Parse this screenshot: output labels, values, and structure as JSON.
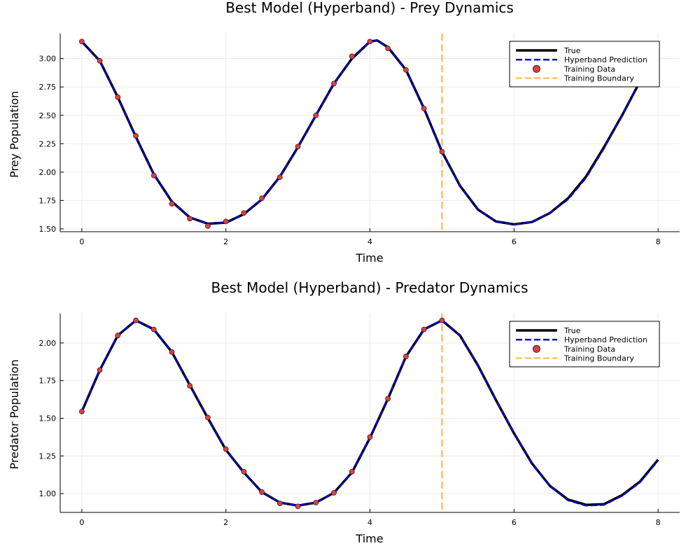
{
  "chart_data": [
    {
      "type": "line",
      "title": "Best Model (Hyperband) - Prey Dynamics",
      "xlabel": "Time",
      "ylabel": "Prey Population",
      "xlim": [
        -0.3,
        8.3
      ],
      "ylim": [
        1.475,
        3.22
      ],
      "xticks": [
        0,
        2,
        4,
        6,
        8
      ],
      "xtick_labels": [
        "0",
        "2",
        "4",
        "6",
        "8"
      ],
      "yticks": [
        1.5,
        1.75,
        2.0,
        2.25,
        2.5,
        2.75,
        3.0
      ],
      "ytick_labels": [
        "1.50",
        "1.75",
        "2.00",
        "2.25",
        "2.50",
        "2.75",
        "3.00"
      ],
      "grid": true,
      "legend_position": "top-right",
      "legend": [
        "True",
        "Hyperband Prediction",
        "Training Data",
        "Training Boundary"
      ],
      "training_boundary": 5,
      "series": [
        {
          "name": "True",
          "color": "#000000",
          "x": [
            0,
            0.25,
            0.5,
            0.75,
            1.0,
            1.25,
            1.5,
            1.75,
            2.0,
            2.25,
            2.5,
            2.75,
            3.0,
            3.25,
            3.5,
            3.75,
            4.0,
            4.1,
            4.25,
            4.5,
            4.75,
            5.0,
            5.25,
            5.5,
            5.75,
            6.0,
            6.25,
            6.5,
            6.75,
            7.0,
            7.25,
            7.5,
            7.75,
            8.0
          ],
          "y": [
            3.15,
            2.98,
            2.66,
            2.31,
            1.98,
            1.74,
            1.6,
            1.545,
            1.555,
            1.63,
            1.76,
            1.96,
            2.22,
            2.5,
            2.78,
            3.0,
            3.15,
            3.16,
            3.1,
            2.9,
            2.56,
            2.18,
            1.88,
            1.67,
            1.565,
            1.54,
            1.56,
            1.64,
            1.77,
            1.96,
            2.22,
            2.5,
            2.8,
            3.09
          ]
        },
        {
          "name": "Hyperband Prediction",
          "color": "#0000cc",
          "x": [
            0,
            0.25,
            0.5,
            0.75,
            1.0,
            1.25,
            1.5,
            1.75,
            2.0,
            2.25,
            2.5,
            2.75,
            3.0,
            3.25,
            3.5,
            3.75,
            4.0,
            4.1,
            4.25,
            4.5,
            4.75,
            5.0,
            5.25,
            5.5,
            5.75,
            6.0,
            6.25,
            6.5,
            6.75,
            7.0,
            7.25,
            7.5,
            7.75,
            8.0
          ],
          "y": [
            3.15,
            2.98,
            2.66,
            2.31,
            1.98,
            1.74,
            1.6,
            1.545,
            1.555,
            1.63,
            1.76,
            1.96,
            2.22,
            2.5,
            2.78,
            3.0,
            3.15,
            3.16,
            3.1,
            2.9,
            2.56,
            2.18,
            1.88,
            1.67,
            1.565,
            1.54,
            1.56,
            1.64,
            1.76,
            1.95,
            2.21,
            2.5,
            2.8,
            3.09
          ]
        }
      ],
      "training_data": {
        "name": "Training Data",
        "color": "#e04040",
        "x": [
          0,
          0.25,
          0.5,
          0.75,
          1.0,
          1.25,
          1.5,
          1.75,
          2.0,
          2.25,
          2.5,
          2.75,
          3.0,
          3.25,
          3.5,
          3.75,
          4.0,
          4.25,
          4.5,
          4.75,
          5.0
        ],
        "y": [
          3.15,
          2.98,
          2.66,
          2.32,
          1.97,
          1.72,
          1.59,
          1.525,
          1.565,
          1.64,
          1.77,
          1.955,
          2.225,
          2.5,
          2.78,
          3.02,
          3.15,
          3.09,
          2.9,
          2.56,
          2.18
        ]
      }
    },
    {
      "type": "line",
      "title": "Best Model (Hyperband) - Predator Dynamics",
      "xlabel": "Time",
      "ylabel": "Predator Population",
      "xlim": [
        -0.3,
        8.3
      ],
      "ylim": [
        0.875,
        2.195
      ],
      "xticks": [
        0,
        2,
        4,
        6,
        8
      ],
      "xtick_labels": [
        "0",
        "2",
        "4",
        "6",
        "8"
      ],
      "yticks": [
        1.0,
        1.25,
        1.5,
        1.75,
        2.0
      ],
      "ytick_labels": [
        "1.00",
        "1.25",
        "1.50",
        "1.75",
        "2.00"
      ],
      "grid": true,
      "legend_position": "top-right",
      "legend": [
        "True",
        "Hyperband Prediction",
        "Training Data",
        "Training Boundary"
      ],
      "training_boundary": 5,
      "series": [
        {
          "name": "True",
          "color": "#000000",
          "x": [
            0,
            0.25,
            0.5,
            0.75,
            1.0,
            1.25,
            1.5,
            1.75,
            2.0,
            2.25,
            2.5,
            2.75,
            3.0,
            3.25,
            3.5,
            3.75,
            4.0,
            4.25,
            4.5,
            4.75,
            5.0,
            5.25,
            5.5,
            5.75,
            6.0,
            6.25,
            6.5,
            6.75,
            7.0,
            7.25,
            7.5,
            7.75,
            8.0
          ],
          "y": [
            1.545,
            1.82,
            2.05,
            2.15,
            2.09,
            1.94,
            1.72,
            1.5,
            1.29,
            1.14,
            1.01,
            0.94,
            0.92,
            0.94,
            1.005,
            1.14,
            1.37,
            1.63,
            1.91,
            2.09,
            2.15,
            2.05,
            1.85,
            1.62,
            1.4,
            1.2,
            1.05,
            0.96,
            0.925,
            0.93,
            0.99,
            1.08,
            1.225
          ]
        },
        {
          "name": "Hyperband Prediction",
          "color": "#0000cc",
          "x": [
            0,
            0.25,
            0.5,
            0.75,
            1.0,
            1.25,
            1.5,
            1.75,
            2.0,
            2.25,
            2.5,
            2.75,
            3.0,
            3.25,
            3.5,
            3.75,
            4.0,
            4.25,
            4.5,
            4.75,
            5.0,
            5.25,
            5.5,
            5.75,
            6.0,
            6.25,
            6.5,
            6.75,
            7.0,
            7.25,
            7.5,
            7.75,
            8.0
          ],
          "y": [
            1.545,
            1.82,
            2.05,
            2.15,
            2.09,
            1.94,
            1.72,
            1.5,
            1.29,
            1.14,
            1.01,
            0.94,
            0.92,
            0.94,
            1.005,
            1.14,
            1.37,
            1.63,
            1.91,
            2.09,
            2.15,
            2.05,
            1.85,
            1.62,
            1.4,
            1.2,
            1.05,
            0.955,
            0.92,
            0.925,
            0.985,
            1.075,
            1.22
          ]
        }
      ],
      "training_data": {
        "name": "Training Data",
        "color": "#e04040",
        "x": [
          0,
          0.25,
          0.5,
          0.75,
          1.0,
          1.25,
          1.5,
          1.75,
          2.0,
          2.25,
          2.5,
          2.75,
          3.0,
          3.25,
          3.5,
          3.75,
          4.0,
          4.25,
          4.5,
          4.75,
          5.0
        ],
        "y": [
          1.545,
          1.82,
          2.05,
          2.15,
          2.09,
          1.94,
          1.715,
          1.505,
          1.295,
          1.145,
          1.01,
          0.935,
          0.915,
          0.94,
          1.005,
          1.145,
          1.375,
          1.63,
          1.91,
          2.09,
          2.15
        ]
      }
    }
  ]
}
